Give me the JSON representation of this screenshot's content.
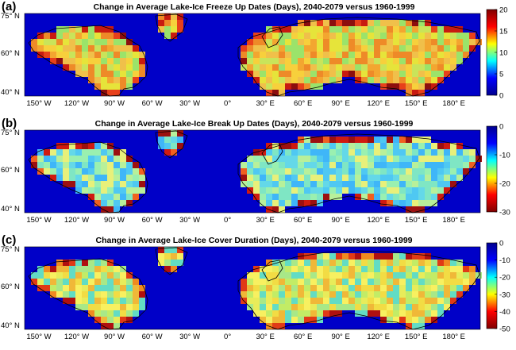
{
  "panels": [
    {
      "label": "(a)",
      "title": "Change in Average Lake-Ice Freeze Up Dates (Days), 2040-2079 versus 1960-1999",
      "colorbar_ticks": [
        "20",
        "15",
        "10",
        "5",
        "0"
      ],
      "colorbar_range": [
        0,
        20
      ],
      "colorbar_low_at_top": false,
      "colorbar_colors": [
        "#00008f",
        "#0000ff",
        "#00ffff",
        "#ffff00",
        "#ff0000",
        "#800000"
      ]
    },
    {
      "label": "(b)",
      "title": "Change in Average Lake-Ice Break Up Dates (Days), 2040-2079 versus 1960-1999",
      "colorbar_ticks": [
        "0",
        "-10",
        "-20",
        "-30"
      ],
      "colorbar_range": [
        -30,
        0
      ],
      "colorbar_low_at_top": false,
      "colorbar_colors": [
        "#800000",
        "#ff0000",
        "#ffff00",
        "#00ffff",
        "#0000ff",
        "#00008f"
      ]
    },
    {
      "label": "(c)",
      "title": "Change in Average Lake-Ice Cover Duration (Days), 2040-2079 versus 1960-1999",
      "colorbar_ticks": [
        "0",
        "-10",
        "-20",
        "-30",
        "-40",
        "-50"
      ],
      "colorbar_range": [
        -50,
        0
      ],
      "colorbar_low_at_top": false,
      "colorbar_colors": [
        "#800000",
        "#ff0000",
        "#ffff00",
        "#00ffff",
        "#0000ff",
        "#00008f"
      ]
    }
  ],
  "lat_labels": [
    "75° N",
    "60° N",
    "40° N"
  ],
  "lon_labels": [
    "150° W",
    "120° W",
    "90° W",
    "60° W",
    "30° W",
    "0°",
    "30° E",
    "60° E",
    "90° E",
    "120° E",
    "150° E",
    "180° E"
  ],
  "colors": {
    "ocean": "#0000c8",
    "land_a": "#f3c33a",
    "land_b": "#7fe0c8",
    "land_c": "#f0d540",
    "edge_hot": "#d81a0e",
    "edge_cool": "#8a0f0f"
  }
}
